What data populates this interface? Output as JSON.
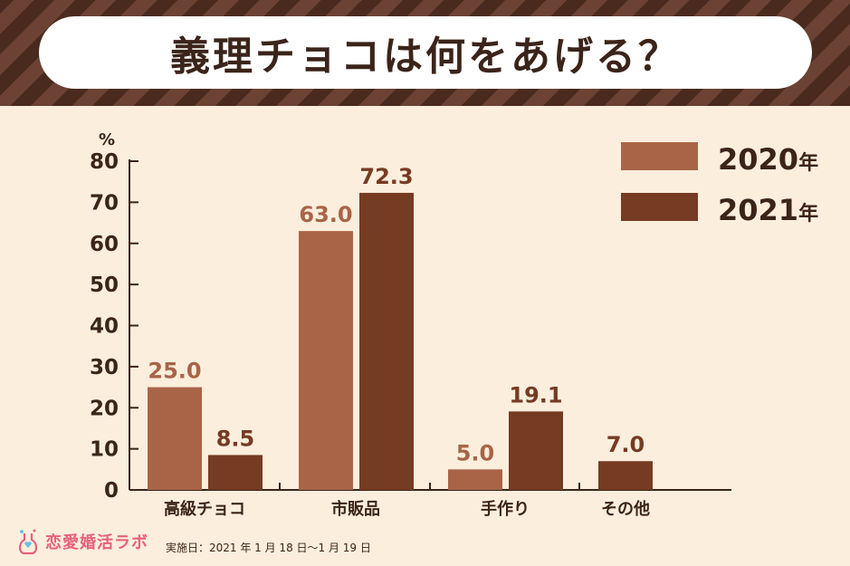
{
  "title": "義理チョコは何をあげる？",
  "chart_data": {
    "type": "bar",
    "ylabel": "%",
    "ylim": [
      0,
      80
    ],
    "yticks": [
      0,
      10,
      20,
      30,
      40,
      50,
      60,
      70,
      80
    ],
    "categories": [
      "高級チョコ",
      "市販品",
      "手作り",
      "その他"
    ],
    "series": [
      {
        "name": "2020年",
        "color": "#a96447",
        "values": [
          25.0,
          63.0,
          5.0,
          null
        ],
        "labels": [
          "25.0",
          "63.0",
          "5.0",
          ""
        ]
      },
      {
        "name": "2021年",
        "color": "#763b23",
        "values": [
          8.5,
          72.3,
          19.1,
          7.0
        ],
        "labels": [
          "8.5",
          "72.3",
          "19.1",
          "7.0"
        ]
      }
    ],
    "legend_position": "top-right",
    "grid": false
  },
  "legend": [
    {
      "year": "2020",
      "unit": "年"
    },
    {
      "year": "2021",
      "unit": "年"
    }
  ],
  "colors": {
    "text": "#3b2419",
    "background": "#fbeedd",
    "brand": "#e8607d"
  },
  "footer": {
    "brand": "恋愛婚活ラボ",
    "note": "実施日：2021 年 1 月 18 日〜1 月 19 日"
  }
}
